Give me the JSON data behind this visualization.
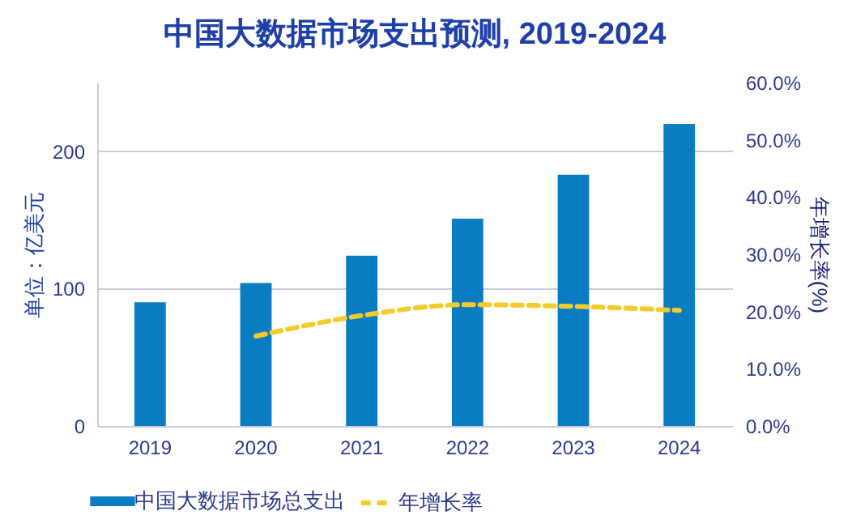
{
  "chart_data": {
    "type": "bar",
    "title": "中国大数据市场支出预测, 2019-2024",
    "ylabel": "单位：亿美元",
    "y2label": "年增长率(%)",
    "categories": [
      "2019",
      "2020",
      "2021",
      "2022",
      "2023",
      "2024"
    ],
    "series": [
      {
        "name": "中国大数据市场总支出",
        "color": "#0a7dc2",
        "values": [
          90,
          104,
          124,
          151,
          183,
          220
        ]
      },
      {
        "name": "年增长率",
        "type": "line",
        "axis": "y2",
        "color": "#f2cc2a",
        "line_style": "dashed",
        "values": [
          null,
          15.7,
          19.3,
          21.2,
          20.9,
          20.2
        ]
      }
    ],
    "ylim": [
      0,
      250
    ],
    "yticks": [
      0,
      100,
      200
    ],
    "y2lim": [
      0,
      60
    ],
    "y2ticks": [
      {
        "value": 0,
        "label": "0.0%"
      },
      {
        "value": 10,
        "label": "10.0%"
      },
      {
        "value": 20,
        "label": "20.0%"
      },
      {
        "value": 30,
        "label": "30.0%"
      },
      {
        "value": 40,
        "label": "40.0%"
      },
      {
        "value": 50,
        "label": "50.0%"
      },
      {
        "value": 60,
        "label": "60.0%"
      }
    ],
    "grid": "y",
    "legend": "bottom"
  }
}
